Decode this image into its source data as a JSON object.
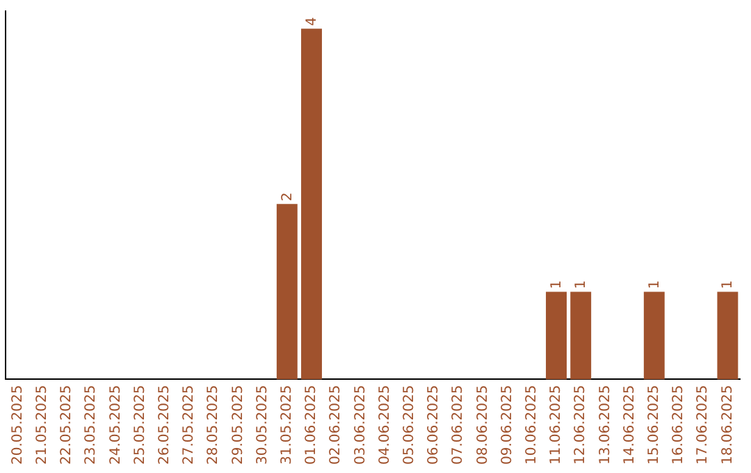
{
  "chart_data": {
    "type": "bar",
    "categories": [
      "20.05.2025",
      "21.05.2025",
      "22.05.2025",
      "23.05.2025",
      "24.05.2025",
      "25.05.2025",
      "26.05.2025",
      "27.05.2025",
      "28.05.2025",
      "29.05.2025",
      "30.05.2025",
      "31.05.2025",
      "01.06.2025",
      "02.06.2025",
      "03.06.2025",
      "04.06.2025",
      "05.06.2025",
      "06.06.2025",
      "07.06.2025",
      "08.06.2025",
      "09.06.2025",
      "10.06.2025",
      "11.06.2025",
      "12.06.2025",
      "13.06.2025",
      "14.06.2025",
      "15.06.2025",
      "16.06.2025",
      "17.06.2025",
      "18.06.2025"
    ],
    "values": [
      0,
      0,
      0,
      0,
      0,
      0,
      0,
      0,
      0,
      0,
      0,
      2,
      4,
      0,
      0,
      0,
      0,
      0,
      0,
      0,
      0,
      0,
      1,
      1,
      0,
      0,
      1,
      0,
      0,
      1
    ],
    "value_labels": [
      null,
      null,
      null,
      null,
      null,
      null,
      null,
      null,
      null,
      null,
      null,
      "2",
      "4",
      null,
      null,
      null,
      null,
      null,
      null,
      null,
      null,
      null,
      "1",
      "1",
      null,
      null,
      "1",
      null,
      null,
      "1"
    ],
    "color": "#a0522d",
    "ylim": [
      0,
      4.2
    ],
    "tick_labels": "x",
    "grid": false,
    "legend": false
  }
}
